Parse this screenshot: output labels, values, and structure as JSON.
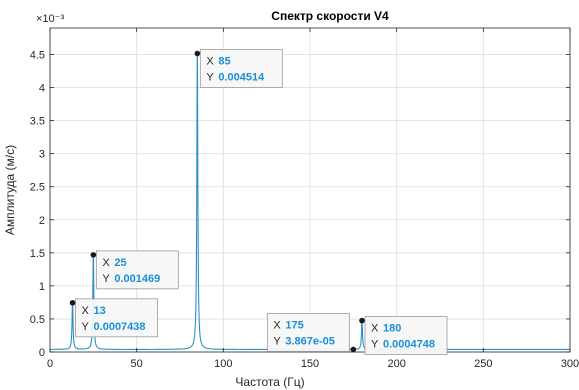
{
  "chart_data": {
    "type": "line",
    "title": "Спектр скорости V4",
    "xlabel": "Частота (Гц)",
    "ylabel": "Амплитуда (м/с)",
    "y_exponent_label": "×10⁻³",
    "y_scale_multiplier": 0.001,
    "xlim": [
      0,
      300
    ],
    "ylim": [
      0,
      0.0049
    ],
    "grid": true,
    "x_ticks": [
      0,
      50,
      100,
      150,
      200,
      250,
      300
    ],
    "y_ticks": [
      0,
      0.5,
      1,
      1.5,
      2,
      2.5,
      3,
      3.5,
      4,
      4.5
    ],
    "line_color": "#2a8fc9",
    "series": [
      {
        "peaks": [
          {
            "x": 13,
            "y": 0.0007438
          },
          {
            "x": 25,
            "y": 0.001469
          },
          {
            "x": 85,
            "y": 0.004514
          },
          {
            "x": 180,
            "y": 0.0004748
          }
        ],
        "baseline": 3.867e-05,
        "baseline_range": [
          0,
          300
        ]
      }
    ],
    "data_tips": [
      {
        "x_key": "X",
        "x_val": "13",
        "y_key": "Y",
        "y_val": "0.0007438",
        "x": 13,
        "y": 0.0007438,
        "side": "right"
      },
      {
        "x_key": "X",
        "x_val": "25",
        "y_key": "Y",
        "y_val": "0.001469",
        "x": 25,
        "y": 0.001469,
        "side": "right"
      },
      {
        "x_key": "X",
        "x_val": "85",
        "y_key": "Y",
        "y_val": "0.004514",
        "x": 85,
        "y": 0.004514,
        "side": "right"
      },
      {
        "x_key": "X",
        "x_val": "175",
        "y_key": "Y",
        "y_val": "3.867e-05",
        "x": 175,
        "y": 3.867e-05,
        "side": "left"
      },
      {
        "x_key": "X",
        "x_val": "180",
        "y_key": "Y",
        "y_val": "0.0004748",
        "x": 180,
        "y": 0.0004748,
        "side": "right"
      }
    ]
  }
}
